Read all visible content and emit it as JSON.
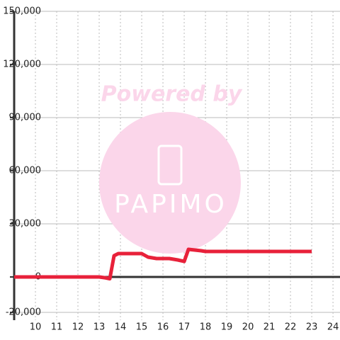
{
  "chart_data": {
    "type": "line",
    "x": [
      9,
      13,
      13.3,
      13.5,
      13.7,
      13.9,
      15,
      15.3,
      15.7,
      16.3,
      16.7,
      17,
      17.2,
      17.8,
      18,
      23
    ],
    "series": [
      {
        "color": "#e8213a",
        "values": [
          0,
          0,
          -500,
          -1000,
          12000,
          13200,
          13200,
          11200,
          10400,
          10400,
          9600,
          8800,
          15600,
          14800,
          14400,
          14400
        ]
      }
    ],
    "xlim": [
      9,
      24.33
    ],
    "xticks": [
      10,
      11,
      12,
      13,
      14,
      15,
      16,
      17,
      18,
      19,
      20,
      21,
      22,
      23,
      24
    ],
    "ylim": [
      -20000,
      150000
    ],
    "yticks": [
      {
        "value": -20000,
        "label": "-20,000"
      },
      0,
      {
        "value": 30000,
        "label": "30,000"
      },
      {
        "value": 60000,
        "label": "60,000"
      },
      {
        "value": 90000,
        "label": "90,000"
      },
      {
        "value": 120000,
        "label": "120,000"
      },
      {
        "value": 150000,
        "label": "150,000"
      }
    ],
    "grid": true,
    "watermark": {
      "text": "Powered by",
      "logo_text": "PAPIMO"
    }
  }
}
